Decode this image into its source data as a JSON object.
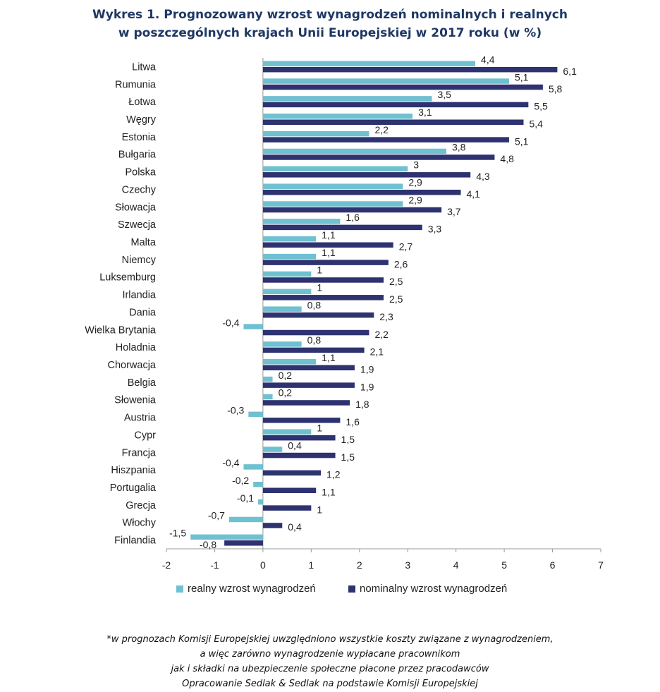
{
  "title": {
    "line1": "Wykres 1. Prognozowany wzrost wynagrodzeń nominalnych i realnych",
    "line2": "w poszczególnych krajach Unii Europejskiej w 2017 roku (w %)"
  },
  "colors": {
    "real": "#6fc0d0",
    "nominal": "#2e3270",
    "axis": "#999999",
    "text": "#222222"
  },
  "chart_data": {
    "type": "bar",
    "orientation": "horizontal",
    "categories": [
      "Litwa",
      "Rumunia",
      "Łotwa",
      "Węgry",
      "Estonia",
      "Bułgaria",
      "Polska",
      "Czechy",
      "Słowacja",
      "Szwecja",
      "Malta",
      "Niemcy",
      "Luksemburg",
      "Irlandia",
      "Dania",
      "Wielka Brytania",
      "Holadnia",
      "Chorwacja",
      "Belgia",
      "Słowenia",
      "Austria",
      "Cypr",
      "Francja",
      "Hiszpania",
      "Portugalia",
      "Grecja",
      "Włochy",
      "Finlandia"
    ],
    "series": [
      {
        "name": "realny wzrost wynagrodzeń",
        "values": [
          4.4,
          5.1,
          3.5,
          3.1,
          2.2,
          3.8,
          3,
          2.9,
          2.9,
          1.6,
          1.1,
          1.1,
          1,
          1,
          0.8,
          -0.4,
          0.8,
          1.1,
          0.2,
          0.2,
          -0.3,
          1,
          0.4,
          -0.4,
          -0.2,
          -0.1,
          -0.7,
          -1.5
        ],
        "labels": [
          "4,4",
          "5,1",
          "3,5",
          "3,1",
          "2,2",
          "3,8",
          "3",
          "2,9",
          "2,9",
          "1,6",
          "1,1",
          "1,1",
          "1",
          "1",
          "0,8",
          "-0,4",
          "0,8",
          "1,1",
          "0,2",
          "0,2",
          "-0,3",
          "1",
          "0,4",
          "-0,4",
          "-0,2",
          "-0,1",
          "-0,7",
          "-1,5"
        ]
      },
      {
        "name": "nominalny wzrost wynagrodzeń",
        "values": [
          6.1,
          5.8,
          5.5,
          5.4,
          5.1,
          4.8,
          4.3,
          4.1,
          3.7,
          3.3,
          2.7,
          2.6,
          2.5,
          2.5,
          2.3,
          2.2,
          2.1,
          1.9,
          1.9,
          1.8,
          1.6,
          1.5,
          1.5,
          1.2,
          1.1,
          1,
          0.4,
          -0.8
        ],
        "labels": [
          "6,1",
          "5,8",
          "5,5",
          "5,4",
          "5,1",
          "4,8",
          "4,3",
          "4,1",
          "3,7",
          "3,3",
          "2,7",
          "2,6",
          "2,5",
          "2,5",
          "2,3",
          "2,2",
          "2,1",
          "1,9",
          "1,9",
          "1,8",
          "1,6",
          "1,5",
          "1,5",
          "1,2",
          "1,1",
          "1",
          "0,4",
          "-0,8"
        ]
      }
    ],
    "xlim": [
      -2,
      7
    ],
    "xticks": [
      -2,
      -1,
      0,
      1,
      2,
      3,
      4,
      5,
      6,
      7
    ],
    "xtick_labels": [
      "-2",
      "-1",
      "0",
      "1",
      "2",
      "3",
      "4",
      "5",
      "6",
      "7"
    ],
    "grid": false,
    "legend": "bottom"
  },
  "footnote": {
    "line1": "*w prognozach Komisji Europejskiej uwzględniono wszystkie koszty związane z wynagrodzeniem,",
    "line2": "a więc zarówno wynagrodzenie wypłacane pracownikom",
    "line3": "jak i składki na ubezpieczenie społeczne płacone przez pracodawców",
    "line4": "Opracowanie Sedlak & Sedlak na podstawie Komisji Europejskiej"
  }
}
